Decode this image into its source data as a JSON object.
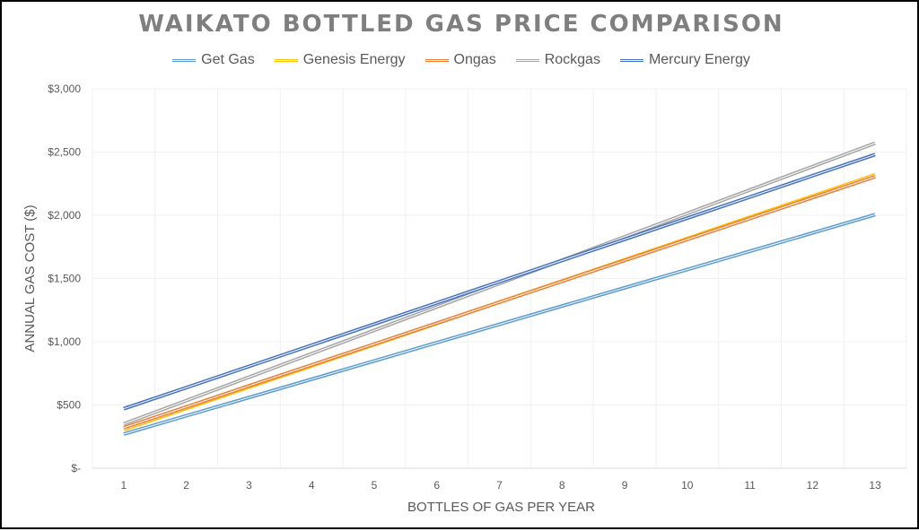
{
  "chart_data": {
    "type": "line",
    "title": "WAIKATO BOTTLED GAS PRICE COMPARISON",
    "xlabel": "BOTTLES OF GAS PER YEAR",
    "ylabel": "ANNUAL GAS COST ($)",
    "x": [
      1,
      2,
      3,
      4,
      5,
      6,
      7,
      8,
      9,
      10,
      11,
      12,
      13
    ],
    "x_tick_labels": [
      "1",
      "2",
      "3",
      "4",
      "5",
      "6",
      "7",
      "8",
      "9",
      "10",
      "11",
      "12",
      "13"
    ],
    "ylim": [
      0,
      3000
    ],
    "y_ticks": [
      0,
      500,
      1000,
      1500,
      2000,
      2500,
      3000
    ],
    "y_tick_labels": [
      "$-",
      "$500",
      "$1,000",
      "$1,500",
      "$2,000",
      "$2,500",
      "$3,000"
    ],
    "grid": true,
    "legend_position": "top",
    "series": [
      {
        "name": "Get Gas",
        "color": "#5b9bd5",
        "start": 270,
        "end": 2005
      },
      {
        "name": "Genesis Energy",
        "color": "#ffc000",
        "start": 305,
        "end": 2320
      },
      {
        "name": "Ongas",
        "color": "#ed7d31",
        "start": 320,
        "end": 2305
      },
      {
        "name": "Rockgas",
        "color": "#a5a5a5",
        "start": 350,
        "end": 2570
      },
      {
        "name": "Mercury Energy",
        "color": "#4472c4",
        "start": 470,
        "end": 2480
      }
    ]
  }
}
